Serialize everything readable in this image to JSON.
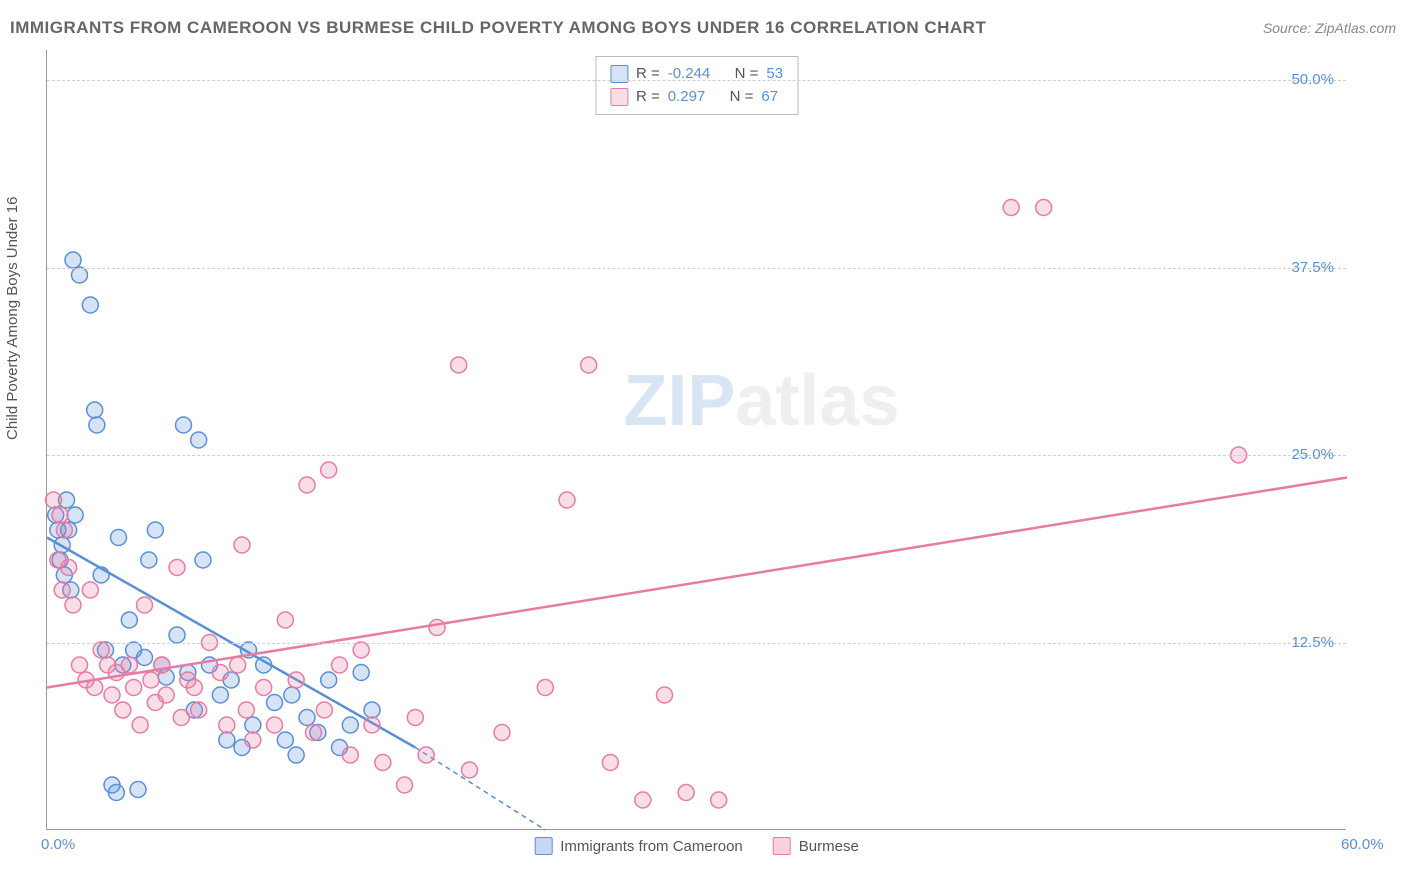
{
  "header": {
    "title": "IMMIGRANTS FROM CAMEROON VS BURMESE CHILD POVERTY AMONG BOYS UNDER 16 CORRELATION CHART",
    "source_prefix": "Source: ",
    "source": "ZipAtlas.com"
  },
  "watermark": {
    "zip": "ZIP",
    "atlas": "atlas"
  },
  "chart": {
    "type": "scatter",
    "background_color": "#ffffff",
    "grid_color": "#d0d0d0",
    "axis_color": "#999999",
    "tick_label_color": "#5a8fd6",
    "text_color": "#555555",
    "ylabel": "Child Poverty Among Boys Under 16",
    "ylabel_fontsize": 15,
    "xlim": [
      0,
      60
    ],
    "ylim": [
      0,
      52
    ],
    "x_ticks": [
      {
        "value": 0,
        "label": "0.0%"
      },
      {
        "value": 60,
        "label": "60.0%"
      }
    ],
    "y_ticks": [
      {
        "value": 12.5,
        "label": "12.5%"
      },
      {
        "value": 25.0,
        "label": "25.0%"
      },
      {
        "value": 37.5,
        "label": "37.5%"
      },
      {
        "value": 50.0,
        "label": "50.0%"
      }
    ],
    "marker_radius": 8,
    "marker_stroke_width": 1.5,
    "marker_fill_opacity": 0.25,
    "trend_line_width": 2.5,
    "series": [
      {
        "name": "Immigrants from Cameroon",
        "color": "#5a8fd6",
        "fill": "rgba(90,143,214,0.25)",
        "r_label": "R =",
        "r_value": "-0.244",
        "n_label": "N =",
        "n_value": "53",
        "trend": {
          "x1": 0,
          "y1": 19.5,
          "x2": 17,
          "y2": 5.5,
          "dash_x2": 23,
          "dash_y2": 0
        },
        "points": [
          [
            0.4,
            21
          ],
          [
            0.5,
            20
          ],
          [
            0.6,
            18
          ],
          [
            0.7,
            19
          ],
          [
            0.8,
            17
          ],
          [
            0.9,
            22
          ],
          [
            1.0,
            20
          ],
          [
            1.1,
            16
          ],
          [
            1.2,
            38
          ],
          [
            1.3,
            21
          ],
          [
            1.5,
            37
          ],
          [
            2.0,
            35
          ],
          [
            2.2,
            28
          ],
          [
            2.3,
            27
          ],
          [
            2.5,
            17
          ],
          [
            2.7,
            12
          ],
          [
            3.0,
            3
          ],
          [
            3.2,
            2.5
          ],
          [
            3.3,
            19.5
          ],
          [
            3.5,
            11
          ],
          [
            3.8,
            14
          ],
          [
            4.0,
            12
          ],
          [
            4.2,
            2.7
          ],
          [
            4.5,
            11.5
          ],
          [
            4.7,
            18
          ],
          [
            5.0,
            20
          ],
          [
            5.3,
            11
          ],
          [
            5.5,
            10.2
          ],
          [
            6.0,
            13
          ],
          [
            6.3,
            27
          ],
          [
            6.5,
            10.5
          ],
          [
            6.8,
            8
          ],
          [
            7.0,
            26
          ],
          [
            7.2,
            18
          ],
          [
            7.5,
            11
          ],
          [
            8.0,
            9
          ],
          [
            8.3,
            6
          ],
          [
            8.5,
            10
          ],
          [
            9.0,
            5.5
          ],
          [
            9.3,
            12
          ],
          [
            9.5,
            7
          ],
          [
            10.0,
            11
          ],
          [
            10.5,
            8.5
          ],
          [
            11.0,
            6
          ],
          [
            11.3,
            9
          ],
          [
            11.5,
            5
          ],
          [
            12.0,
            7.5
          ],
          [
            12.5,
            6.5
          ],
          [
            13.0,
            10
          ],
          [
            13.5,
            5.5
          ],
          [
            14.0,
            7
          ],
          [
            14.5,
            10.5
          ],
          [
            15.0,
            8
          ]
        ]
      },
      {
        "name": "Burmese",
        "color": "#e87ba3",
        "fill": "rgba(232,123,163,0.25)",
        "r_label": "R =",
        "r_value": "0.297",
        "n_label": "N =",
        "n_value": "67",
        "trend": {
          "x1": 0,
          "y1": 9.5,
          "x2": 60,
          "y2": 23.5
        },
        "points": [
          [
            0.3,
            22
          ],
          [
            0.5,
            18
          ],
          [
            0.6,
            21
          ],
          [
            0.7,
            16
          ],
          [
            0.8,
            20
          ],
          [
            1.0,
            17.5
          ],
          [
            1.2,
            15
          ],
          [
            1.5,
            11
          ],
          [
            1.8,
            10
          ],
          [
            2.0,
            16
          ],
          [
            2.2,
            9.5
          ],
          [
            2.5,
            12
          ],
          [
            2.8,
            11
          ],
          [
            3.0,
            9
          ],
          [
            3.2,
            10.5
          ],
          [
            3.5,
            8
          ],
          [
            3.8,
            11
          ],
          [
            4.0,
            9.5
          ],
          [
            4.3,
            7
          ],
          [
            4.5,
            15
          ],
          [
            4.8,
            10
          ],
          [
            5.0,
            8.5
          ],
          [
            5.3,
            11
          ],
          [
            5.5,
            9
          ],
          [
            6.0,
            17.5
          ],
          [
            6.2,
            7.5
          ],
          [
            6.5,
            10
          ],
          [
            6.8,
            9.5
          ],
          [
            7.0,
            8
          ],
          [
            7.5,
            12.5
          ],
          [
            8.0,
            10.5
          ],
          [
            8.3,
            7
          ],
          [
            8.8,
            11
          ],
          [
            9.0,
            19
          ],
          [
            9.2,
            8
          ],
          [
            9.5,
            6
          ],
          [
            10.0,
            9.5
          ],
          [
            10.5,
            7
          ],
          [
            11.0,
            14
          ],
          [
            11.5,
            10
          ],
          [
            12.0,
            23
          ],
          [
            12.3,
            6.5
          ],
          [
            12.8,
            8
          ],
          [
            13.0,
            24
          ],
          [
            13.5,
            11
          ],
          [
            14.0,
            5
          ],
          [
            14.5,
            12
          ],
          [
            15.0,
            7
          ],
          [
            15.5,
            4.5
          ],
          [
            16.5,
            3
          ],
          [
            17.0,
            7.5
          ],
          [
            17.5,
            5
          ],
          [
            18.0,
            13.5
          ],
          [
            19.0,
            31
          ],
          [
            19.5,
            4
          ],
          [
            21.0,
            6.5
          ],
          [
            23.0,
            9.5
          ],
          [
            24.0,
            22
          ],
          [
            25.0,
            31
          ],
          [
            26.0,
            4.5
          ],
          [
            27.5,
            2
          ],
          [
            28.5,
            9
          ],
          [
            29.5,
            2.5
          ],
          [
            31.0,
            2
          ],
          [
            44.5,
            41.5
          ],
          [
            55.0,
            25
          ],
          [
            46.0,
            41.5
          ]
        ]
      }
    ],
    "legend_bottom": [
      {
        "swatch": "#5a8fd6",
        "fill": "rgba(90,143,214,0.35)",
        "label": "Immigrants from Cameroon"
      },
      {
        "swatch": "#e87ba3",
        "fill": "rgba(232,123,163,0.35)",
        "label": "Burmese"
      }
    ]
  }
}
